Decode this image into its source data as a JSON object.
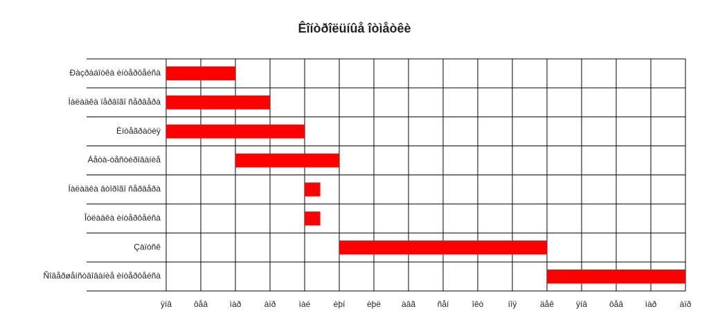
{
  "chart_data": {
    "type": "gantt",
    "title": "Êîíòðîëüíûå îòìåòêè",
    "categories": [
      "Ðàçðàáîòêà èíòåðôåéñà",
      "Íàëàäêà ïåðâîãî ñåðâåðà",
      "Èíòåãðàöèÿ",
      "Áåòà-òåñòèðîâàíèå",
      "Íàëàäêà âòîðîãî ñåðâåðà",
      "Îòëàäêà èíòåðôåéñà",
      "Çàïóñê",
      "Ñîâåðøåíñòâîâàíèå èíòåðôåéñà"
    ],
    "start": [
      0,
      0,
      0,
      2,
      4,
      4,
      5,
      11
    ],
    "end": [
      2,
      3,
      4,
      5,
      4.45,
      4.45,
      11,
      15
    ],
    "color": "#ff0000",
    "xlim": [
      0,
      15
    ],
    "xticks": [
      {
        "value": 0,
        "label": "ÿíâ"
      },
      {
        "value": 1,
        "label": "ôåâ"
      },
      {
        "value": 2,
        "label": "ìàð"
      },
      {
        "value": 3,
        "label": "àïð"
      },
      {
        "value": 4,
        "label": "ìàé"
      },
      {
        "value": 5,
        "label": "èþí"
      },
      {
        "value": 6,
        "label": "èþë"
      },
      {
        "value": 7,
        "label": "àâã"
      },
      {
        "value": 8,
        "label": "ñåí"
      },
      {
        "value": 9,
        "label": "îêò"
      },
      {
        "value": 10,
        "label": "íîÿ"
      },
      {
        "value": 11,
        "label": "äåê"
      },
      {
        "value": 12,
        "label": "ÿíâ"
      },
      {
        "value": 13,
        "label": "ôåâ"
      },
      {
        "value": 14,
        "label": "ìàð"
      },
      {
        "value": 15,
        "label": "àïð"
      }
    ],
    "grid": true
  }
}
